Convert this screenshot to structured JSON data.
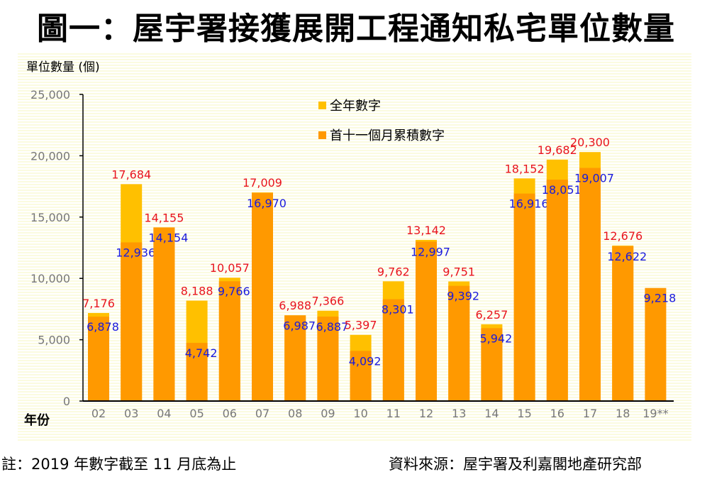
{
  "chart_data": {
    "type": "bar",
    "title": "圖一：屋宇署接獲展開工程通知私宅單位數量",
    "ylabel": "單位數量 (個)",
    "xlabel": "年份",
    "ylim": [
      0,
      25000
    ],
    "yticks": [
      0,
      5000,
      10000,
      15000,
      20000,
      25000
    ],
    "ytick_labels": [
      "0",
      "5,000",
      "10,000",
      "15,000",
      "20,000",
      "25,000"
    ],
    "categories": [
      "02",
      "03",
      "04",
      "05",
      "06",
      "07",
      "08",
      "09",
      "10",
      "11",
      "12",
      "13",
      "14",
      "15",
      "16",
      "17",
      "18",
      "19**"
    ],
    "series": [
      {
        "name": "全年數字",
        "color": "#ffc000",
        "values": [
          7176,
          17684,
          14155,
          8188,
          10057,
          17009,
          6988,
          7366,
          5397,
          9762,
          13142,
          9751,
          6257,
          18152,
          19682,
          20300,
          12676,
          null
        ],
        "labels": [
          "7,176",
          "17,684",
          "14,155",
          "8,188",
          "10,057",
          "17,009",
          "6,988",
          "7,366",
          "5,397",
          "9,762",
          "13,142",
          "9,751",
          "6,257",
          "18,152",
          "19,682",
          "20,300",
          "12,676",
          null
        ],
        "label_color": "#e8141e"
      },
      {
        "name": "首十一個月累積數字",
        "color": "#ff9900",
        "values": [
          6878,
          12936,
          14154,
          4742,
          9766,
          16970,
          6987,
          6887,
          4092,
          8301,
          12997,
          9392,
          5942,
          16916,
          18051,
          19007,
          12622,
          9218
        ],
        "labels": [
          "6,878",
          "12,936",
          "14,154",
          "4,742",
          "9,766",
          "16,970",
          "6,987",
          "6,887",
          "4,092",
          "8,301",
          "12,997",
          "9,392",
          "5,942",
          "16,916",
          "18,051",
          "19,007",
          "12,622",
          "9,218"
        ],
        "label_color": "#1a1adc"
      }
    ],
    "legend": "top-center",
    "grid": false
  },
  "footer": {
    "note": "註：2019 年數字截至 11 月底為止",
    "source": "資料來源：屋宇署及利嘉閣地產研究部"
  }
}
